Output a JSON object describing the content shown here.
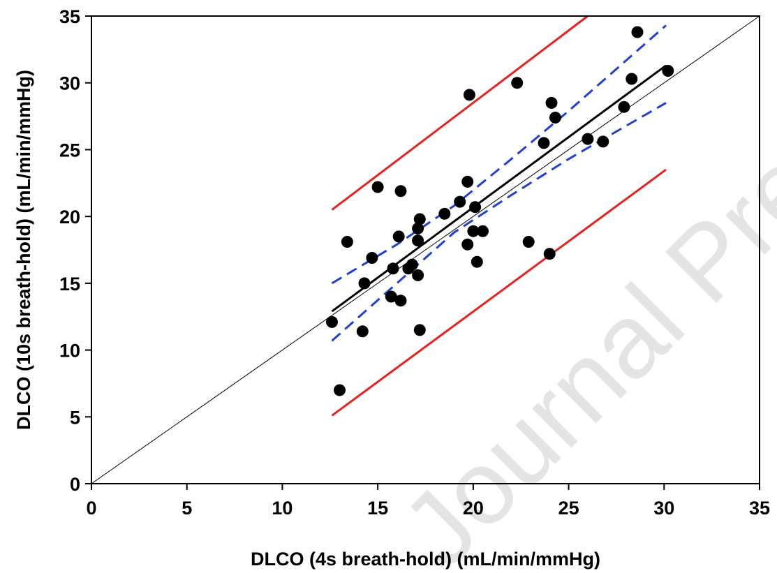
{
  "chart_data": {
    "type": "scatter",
    "title": "",
    "xlabel": "DLCO (4s breath-hold) (mL/min/mmHg)",
    "ylabel": "DLCO (10s breath-hold) (mL/min/mmHg)",
    "xlim": [
      0,
      35
    ],
    "ylim": [
      0,
      35
    ],
    "xticks": [
      "0",
      "5",
      "10",
      "15",
      "20",
      "25",
      "30",
      "35"
    ],
    "yticks": [
      "0",
      "5",
      "10",
      "15",
      "20",
      "25",
      "30",
      "35"
    ],
    "grid": false,
    "watermark": "Journal Pre-proof",
    "points": [
      [
        12.6,
        12.1
      ],
      [
        13.0,
        7.0
      ],
      [
        13.4,
        18.1
      ],
      [
        14.2,
        11.4
      ],
      [
        14.3,
        15.0
      ],
      [
        14.7,
        16.9
      ],
      [
        15.0,
        22.2
      ],
      [
        15.7,
        14.0
      ],
      [
        15.8,
        16.1
      ],
      [
        16.1,
        18.5
      ],
      [
        16.2,
        13.7
      ],
      [
        16.2,
        21.9
      ],
      [
        16.6,
        16.1
      ],
      [
        16.8,
        16.4
      ],
      [
        17.1,
        15.6
      ],
      [
        17.1,
        18.2
      ],
      [
        17.1,
        19.1
      ],
      [
        17.2,
        19.8
      ],
      [
        17.2,
        11.5
      ],
      [
        18.5,
        20.2
      ],
      [
        19.3,
        21.1
      ],
      [
        19.7,
        17.9
      ],
      [
        19.7,
        22.6
      ],
      [
        19.8,
        29.1
      ],
      [
        20.0,
        18.9
      ],
      [
        20.1,
        20.7
      ],
      [
        20.2,
        16.6
      ],
      [
        20.5,
        18.9
      ],
      [
        22.3,
        30.0
      ],
      [
        22.9,
        18.1
      ],
      [
        23.7,
        25.5
      ],
      [
        24.0,
        17.2
      ],
      [
        24.1,
        28.5
      ],
      [
        24.3,
        27.4
      ],
      [
        26.0,
        25.8
      ],
      [
        26.8,
        25.6
      ],
      [
        27.9,
        28.2
      ],
      [
        28.3,
        30.3
      ],
      [
        28.6,
        33.8
      ],
      [
        30.2,
        30.9
      ]
    ],
    "lines": [
      {
        "kind": "identity",
        "color": "#000000",
        "style": "solid",
        "width": 1,
        "points": [
          [
            0,
            0
          ],
          [
            35,
            35
          ]
        ]
      },
      {
        "kind": "regression",
        "color": "#000000",
        "style": "solid",
        "width": 3,
        "points": [
          [
            12.6,
            12.9
          ],
          [
            30.1,
            31.3
          ]
        ]
      },
      {
        "kind": "confidence-upper",
        "color": "#1f3fd6",
        "style": "dashed",
        "width": 3,
        "points": [
          [
            12.6,
            15.0
          ],
          [
            16.0,
            17.9
          ],
          [
            19.0,
            20.8
          ],
          [
            22.0,
            24.3
          ],
          [
            25.0,
            27.9
          ],
          [
            30.1,
            34.3
          ]
        ]
      },
      {
        "kind": "confidence-lower",
        "color": "#1f3fd6",
        "style": "dashed",
        "width": 3,
        "points": [
          [
            12.6,
            10.7
          ],
          [
            16.0,
            15.0
          ],
          [
            19.0,
            18.8
          ],
          [
            22.0,
            21.6
          ],
          [
            25.0,
            24.3
          ],
          [
            30.1,
            28.5
          ]
        ]
      },
      {
        "kind": "prediction-upper",
        "color": "#e8211e",
        "style": "solid",
        "width": 3,
        "points": [
          [
            12.6,
            20.5
          ],
          [
            26.0,
            35.0
          ]
        ]
      },
      {
        "kind": "prediction-lower",
        "color": "#e8211e",
        "style": "solid",
        "width": 3,
        "points": [
          [
            12.6,
            5.1
          ],
          [
            30.1,
            23.5
          ]
        ]
      }
    ]
  }
}
